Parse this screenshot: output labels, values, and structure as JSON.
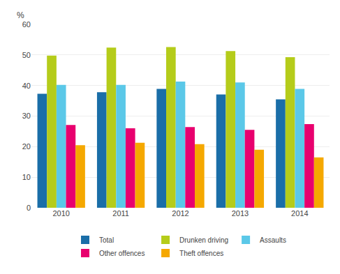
{
  "chart_data": {
    "type": "bar",
    "categories": [
      "2010",
      "2011",
      "2012",
      "2013",
      "2014"
    ],
    "series": [
      {
        "name": "Total",
        "color": "#1a6ea8",
        "values": [
          37.3,
          37.8,
          38.9,
          37.1,
          35.5
        ]
      },
      {
        "name": "Drunken driving",
        "color": "#b5cc1a",
        "values": [
          49.8,
          52.4,
          52.6,
          51.3,
          49.3
        ]
      },
      {
        "name": "Assaults",
        "color": "#5bc8e8",
        "values": [
          40.2,
          40.2,
          41.3,
          41.0,
          38.9
        ]
      },
      {
        "name": "Other offences",
        "color": "#e8006e",
        "values": [
          27.1,
          26.0,
          26.4,
          25.5,
          27.4
        ]
      },
      {
        "name": "Theft offences",
        "color": "#f5a800",
        "values": [
          20.5,
          21.3,
          20.8,
          19.0,
          16.5
        ]
      }
    ],
    "ylabel": "%",
    "ylim": [
      0,
      60
    ],
    "yticks": [
      0,
      10,
      20,
      30,
      40,
      50,
      60
    ],
    "grid": true,
    "legend": "bottom"
  }
}
